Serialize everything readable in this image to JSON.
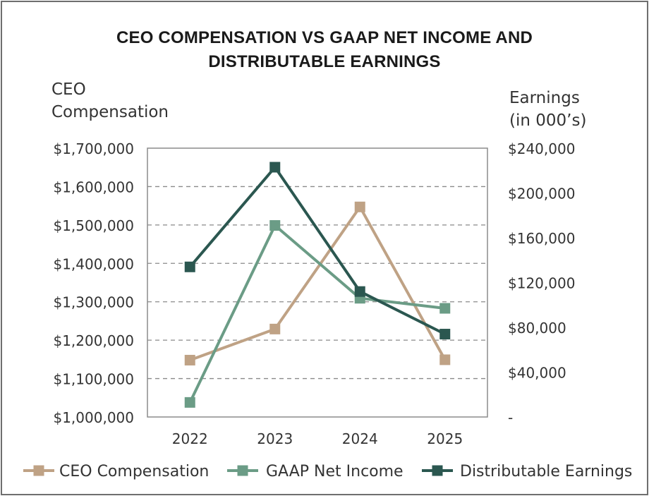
{
  "chart_data": {
    "type": "line",
    "title_lines": [
      "CEO COMPENSATION VS GAAP NET INCOME AND",
      "DISTRIBUTABLE EARNINGS"
    ],
    "y_left_label_lines": [
      "CEO",
      "Compensation"
    ],
    "y_right_label_lines": [
      "Earnings",
      "(in 000’s)"
    ],
    "categories": [
      "2022",
      "2023",
      "2024",
      "2025"
    ],
    "y_left_ticks": [
      "$1,000,000",
      "$1,100,000",
      "$1,200,000",
      "$1,300,000",
      "$1,400,000",
      "$1,500,000",
      "$1,600,000",
      "$1,700,000"
    ],
    "y_right_ticks": [
      "-",
      "$40,000",
      "$80,000",
      "$120,000",
      "$160,000",
      "$200,000",
      "$240,000"
    ],
    "y_left_range": [
      1000000,
      1700000
    ],
    "y_right_range": [
      0,
      240000
    ],
    "grid": "horizontal dashed",
    "legend_position": "bottom",
    "series": [
      {
        "name": "CEO Compensation",
        "axis": "left",
        "color": "#bfa285",
        "values": [
          1148000,
          1229000,
          1547000,
          1149000
        ]
      },
      {
        "name": "GAAP Net Income",
        "axis": "right",
        "color": "#6b9c86",
        "values": [
          13000,
          171000,
          106000,
          97000
        ]
      },
      {
        "name": "Distributable Earnings",
        "axis": "right",
        "color": "#2b5750",
        "values": [
          134000,
          223000,
          112000,
          74000
        ]
      }
    ]
  }
}
